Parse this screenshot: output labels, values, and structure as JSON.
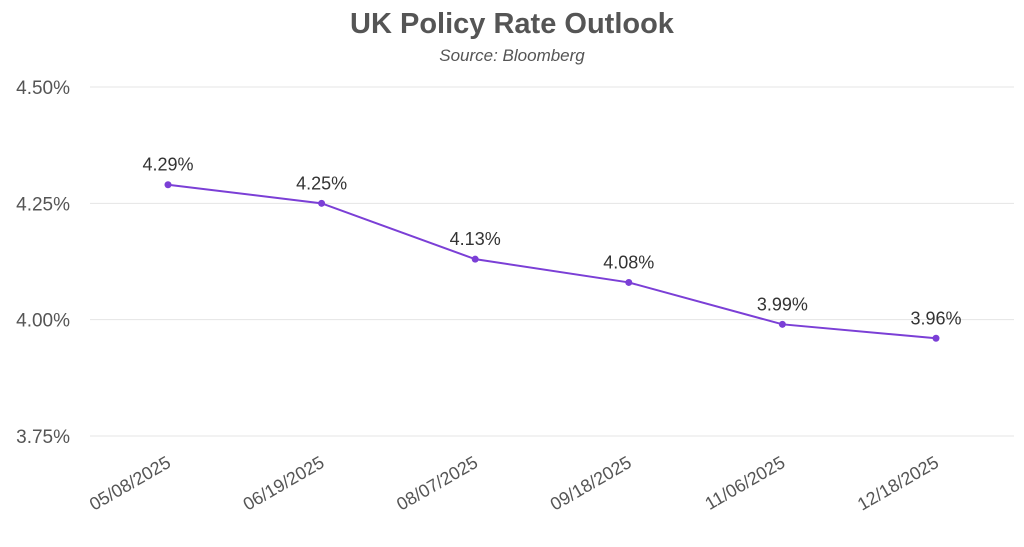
{
  "chart_data": {
    "type": "line",
    "title": "UK Policy Rate Outlook",
    "subtitle": "Source: Bloomberg",
    "categories": [
      "05/08/2025",
      "06/19/2025",
      "08/07/2025",
      "09/18/2025",
      "11/06/2025",
      "12/18/2025"
    ],
    "series": [
      {
        "values": [
          4.29,
          4.25,
          4.13,
          4.08,
          3.99,
          3.96
        ]
      }
    ],
    "data_labels": [
      "4.29%",
      "4.25%",
      "4.13%",
      "4.08%",
      "3.99%",
      "3.96%"
    ],
    "ylim": [
      3.75,
      4.5
    ],
    "yticks": [
      3.75,
      4.0,
      4.25,
      4.5
    ],
    "ytick_labels": [
      "3.75%",
      "4.00%",
      "4.25%",
      "4.50%"
    ],
    "grid": true,
    "line_color": "#7B3FD6",
    "grid_color": "#E5E5E5",
    "text_color": "#555555"
  }
}
